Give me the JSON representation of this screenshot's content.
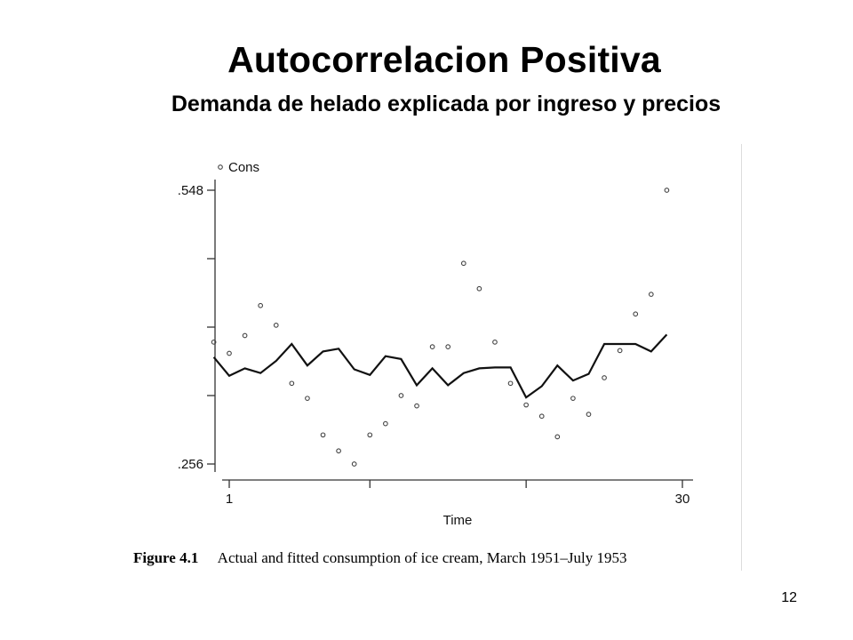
{
  "slide": {
    "title": "Autocorrelacion Positiva",
    "subtitle": "Demanda de helado explicada por ingreso y precios",
    "page_number": "12"
  },
  "figure": {
    "label": "Figure 4.1",
    "caption": "Actual and fitted consumption of ice cream, March 1951–July 1953"
  },
  "chart_data": {
    "type": "line",
    "xlabel": "Time",
    "xlim": [
      1,
      30
    ],
    "x_tick_labels": [
      {
        "x": 1,
        "label": "1"
      },
      {
        "x": 30,
        "label": "30"
      }
    ],
    "x_ticks": [
      1,
      10,
      20,
      30
    ],
    "ylim": [
      0.256,
      0.548
    ],
    "y_tick_labels": [
      {
        "y": 0.548,
        "label": ".548"
      },
      {
        "y": 0.256,
        "label": ".256"
      }
    ],
    "y_ticks": [
      0.256,
      0.329,
      0.402,
      0.475,
      0.548
    ],
    "legend": {
      "position": "top-left",
      "entries": [
        "Cons"
      ]
    },
    "series": [
      {
        "name": "Cons",
        "style": "scatter",
        "color": "#444444",
        "points": [
          [
            0.01,
            0.386
          ],
          [
            1,
            0.374
          ],
          [
            2,
            0.393
          ],
          [
            3,
            0.425
          ],
          [
            4,
            0.404
          ],
          [
            5,
            0.342
          ],
          [
            6,
            0.326
          ],
          [
            7,
            0.287
          ],
          [
            8,
            0.27
          ],
          [
            9,
            0.256
          ],
          [
            10,
            0.287
          ],
          [
            11,
            0.299
          ],
          [
            12,
            0.329
          ],
          [
            13,
            0.318
          ],
          [
            14,
            0.381
          ],
          [
            15,
            0.381
          ],
          [
            16,
            0.47
          ],
          [
            17,
            0.443
          ],
          [
            18,
            0.386
          ],
          [
            19,
            0.342
          ],
          [
            20,
            0.319
          ],
          [
            21,
            0.307
          ],
          [
            22,
            0.285
          ],
          [
            23,
            0.326
          ],
          [
            24,
            0.309
          ],
          [
            25,
            0.348
          ],
          [
            26,
            0.377
          ],
          [
            27,
            0.416
          ],
          [
            28,
            0.437
          ],
          [
            29,
            0.548
          ]
        ]
      },
      {
        "name": "",
        "style": "line",
        "color": "#111111",
        "points": [
          [
            0.01,
            0.37
          ],
          [
            1,
            0.35
          ],
          [
            2,
            0.358
          ],
          [
            3,
            0.353
          ],
          [
            4,
            0.366
          ],
          [
            5,
            0.384
          ],
          [
            6,
            0.361
          ],
          [
            7,
            0.376
          ],
          [
            8,
            0.379
          ],
          [
            9,
            0.357
          ],
          [
            10,
            0.351
          ],
          [
            11,
            0.371
          ],
          [
            12,
            0.368
          ],
          [
            13,
            0.34
          ],
          [
            14,
            0.358
          ],
          [
            15,
            0.34
          ],
          [
            16,
            0.353
          ],
          [
            17,
            0.358
          ],
          [
            18,
            0.359
          ],
          [
            19,
            0.359
          ],
          [
            20,
            0.327
          ],
          [
            21,
            0.339
          ],
          [
            22,
            0.361
          ],
          [
            23,
            0.345
          ],
          [
            24,
            0.352
          ],
          [
            25,
            0.384
          ],
          [
            26,
            0.384
          ],
          [
            27,
            0.384
          ],
          [
            28,
            0.376
          ],
          [
            29,
            0.394
          ]
        ]
      }
    ]
  }
}
